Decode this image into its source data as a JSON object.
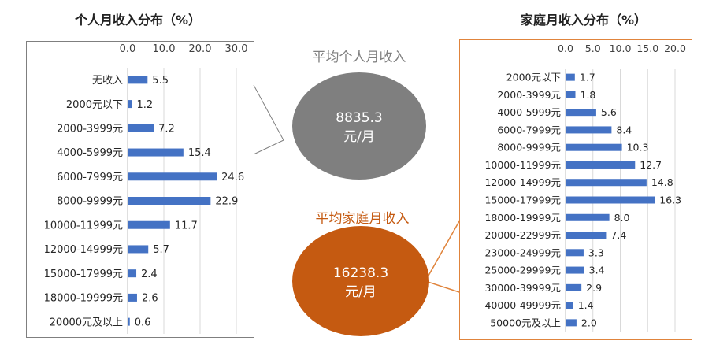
{
  "left_title": "个人月收入分布（%）",
  "right_title": "家庭月收入分布（%）",
  "personal_avg": {
    "label": "平均个人月收入",
    "value": "8835.3",
    "unit": "元/月"
  },
  "family_avg": {
    "label": "平均家庭月收入",
    "value": "16238.3",
    "unit": "元/月"
  },
  "colors": {
    "bar": "#4472c4",
    "grey_bubble": "#7f7f7f",
    "orange_bubble": "#c55a11",
    "orange_border": "#e0843c",
    "orange_text": "#c55a11"
  },
  "chart_data": [
    {
      "type": "bar",
      "orientation": "horizontal",
      "title": "个人月收入分布（%）",
      "categories": [
        "无收入",
        "2000元以下",
        "2000-3999元",
        "4000-5999元",
        "6000-7999元",
        "8000-9999元",
        "10000-11999元",
        "12000-14999元",
        "15000-17999元",
        "18000-19999元",
        "20000元及以上"
      ],
      "values": [
        5.5,
        1.2,
        7.2,
        15.4,
        24.6,
        22.9,
        11.7,
        5.7,
        2.4,
        2.6,
        0.6
      ],
      "value_labels": [
        "5.5",
        "1.2",
        "7.2",
        "15.4",
        "24.6",
        "22.9",
        "11.7",
        "5.7",
        "2.4",
        "2.6",
        "0.6"
      ],
      "xlim": [
        0,
        30
      ],
      "ticks": [
        "0.0",
        "10.0",
        "20.0",
        "30.0"
      ],
      "tick_values": [
        0,
        10,
        20,
        30
      ],
      "axis_position": "top",
      "grid": true
    },
    {
      "type": "bar",
      "orientation": "horizontal",
      "title": "家庭月收入分布（%）",
      "categories": [
        "2000元以下",
        "2000-3999元",
        "4000-5999元",
        "6000-7999元",
        "8000-9999元",
        "10000-11999元",
        "12000-14999元",
        "15000-17999元",
        "18000-19999元",
        "20000-22999元",
        "23000-24999元",
        "25000-29999元",
        "30000-39999元",
        "40000-49999元",
        "50000元及以上"
      ],
      "values": [
        1.7,
        1.8,
        5.6,
        8.4,
        10.3,
        12.7,
        14.8,
        16.3,
        8.0,
        7.4,
        3.3,
        3.4,
        2.9,
        1.4,
        2.0
      ],
      "value_labels": [
        "1.7",
        "1.8",
        "5.6",
        "8.4",
        "10.3",
        "12.7",
        "14.8",
        "16.3",
        "8.0",
        "7.4",
        "3.3",
        "3.4",
        "2.9",
        "1.4",
        "2.0"
      ],
      "xlim": [
        0,
        20
      ],
      "ticks": [
        "0.0",
        "5.0",
        "10.0",
        "15.0",
        "20.0"
      ],
      "tick_values": [
        0,
        5,
        10,
        15,
        20
      ],
      "axis_position": "top",
      "grid": true
    }
  ]
}
